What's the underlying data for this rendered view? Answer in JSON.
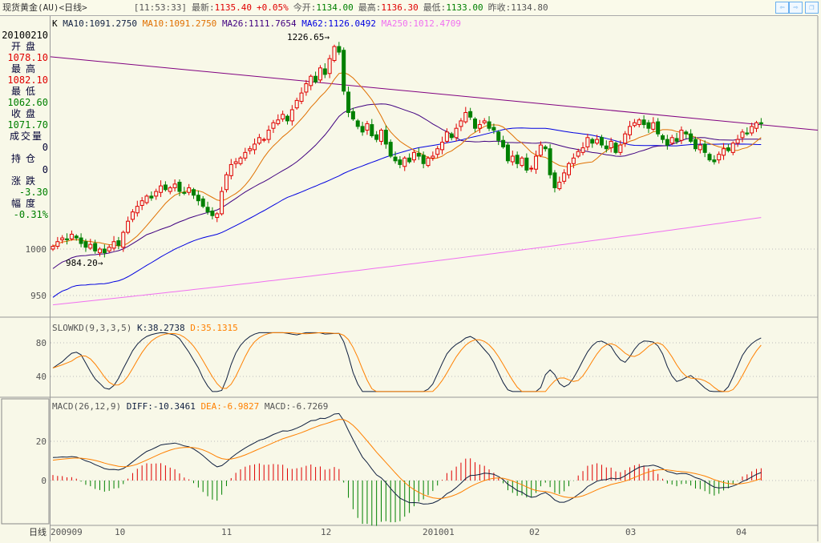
{
  "title": {
    "name": "现货黄金(AU)<日线>",
    "time": "[11:53:33]",
    "latest_label": "最新:",
    "latest": "1135.40",
    "change": "+0.05%",
    "open_label": "今开:",
    "open": "1134.00",
    "high_label": "最高:",
    "high": "1136.30",
    "low_label": "最低:",
    "low": "1133.00",
    "prev_label": "昨收:",
    "prev": "1134.80"
  },
  "window_buttons": {
    "back": "⇦",
    "forward": "⇨",
    "restore": "❐"
  },
  "info": {
    "date": "20100210",
    "open_label": "开盘",
    "open": "1078.10",
    "high_label": "最高",
    "high": "1082.10",
    "low_label": "最低",
    "low": "1062.60",
    "close_label": "收盘",
    "close": "1071.70",
    "volume_label": "成交量",
    "volume": "0",
    "position_label": "持仓",
    "position": "0",
    "change_label": "涨跌",
    "change": "-3.30",
    "pct_label": "幅度",
    "pct": "-0.31%"
  },
  "legend_price": {
    "k": "K",
    "ma10a": "MA10:1091.2750",
    "ma10b": "MA10:1091.2750",
    "ma26": "MA26:1111.7654",
    "ma62": "MA62:1126.0492",
    "ma250": "MA250:1012.4709"
  },
  "legend_kd": {
    "name": "SLOWKD(9,3,3,5)",
    "k": "K:38.2738",
    "d": "D:35.1315"
  },
  "legend_macd": {
    "name": "MACD(26,12,9)",
    "diff": "DIFF:-10.3461",
    "dea": "DEA:-6.9827",
    "macd": "MACD:-6.7269"
  },
  "annotations": {
    "max": "1226.65→",
    "min": "984.20→"
  },
  "axis": {
    "price_ticks": [
      "1000",
      "950"
    ],
    "kd_ticks": [
      "80",
      "40"
    ],
    "macd_ticks": [
      "20",
      "0"
    ],
    "period_label": "日线",
    "dates": [
      "200909",
      "10",
      "11",
      "12",
      "201001",
      "02",
      "03",
      "04"
    ]
  },
  "colors": {
    "up": "#e00000",
    "down": "#008000",
    "ma10": "#e07000",
    "ma26": "#400080",
    "ma62": "#0000e0",
    "ma250": "#f070f0",
    "trend": "#800080",
    "k": "#102040",
    "d": "#ff8000"
  },
  "chart_data": {
    "type": "candlestick",
    "price_range": [
      930,
      1250
    ],
    "closes": [
      1003,
      1008,
      1012,
      1010,
      1016,
      1012,
      1006,
      1002,
      1005,
      998,
      1000,
      996,
      1002,
      1008,
      1004,
      1018,
      1030,
      1040,
      1046,
      1052,
      1057,
      1055,
      1062,
      1068,
      1064,
      1066,
      1070,
      1062,
      1060,
      1066,
      1058,
      1052,
      1046,
      1040,
      1036,
      1038,
      1062,
      1080,
      1091,
      1094,
      1098,
      1104,
      1108,
      1113,
      1120,
      1118,
      1128,
      1136,
      1139,
      1145,
      1138,
      1150,
      1160,
      1168,
      1178,
      1186,
      1180,
      1195,
      1188,
      1205,
      1218,
      1212,
      1170,
      1147,
      1140,
      1132,
      1126,
      1135,
      1122,
      1118,
      1128,
      1113,
      1100,
      1095,
      1091,
      1098,
      1094,
      1104,
      1100,
      1092,
      1098,
      1100,
      1108,
      1115,
      1126,
      1120,
      1130,
      1138,
      1147,
      1142,
      1130,
      1134,
      1138,
      1130,
      1128,
      1117,
      1110,
      1095,
      1100,
      1092,
      1098,
      1085,
      1087,
      1100,
      1112,
      1108,
      1080,
      1066,
      1072,
      1082,
      1092,
      1098,
      1105,
      1109,
      1120,
      1114,
      1118,
      1112,
      1108,
      1116,
      1104,
      1112,
      1124,
      1132,
      1136,
      1139,
      1134,
      1130,
      1136,
      1124,
      1118,
      1112,
      1120,
      1116,
      1128,
      1124,
      1116,
      1108,
      1112,
      1104,
      1096,
      1094,
      1102,
      1108,
      1106,
      1114,
      1118,
      1126,
      1124,
      1132,
      1136,
      1135
    ],
    "ma250_range": [
      940,
      1034
    ],
    "trendline": [
      1207,
      1128
    ],
    "kd_range": [
      20,
      100
    ],
    "macd_range": [
      -22,
      36
    ]
  }
}
